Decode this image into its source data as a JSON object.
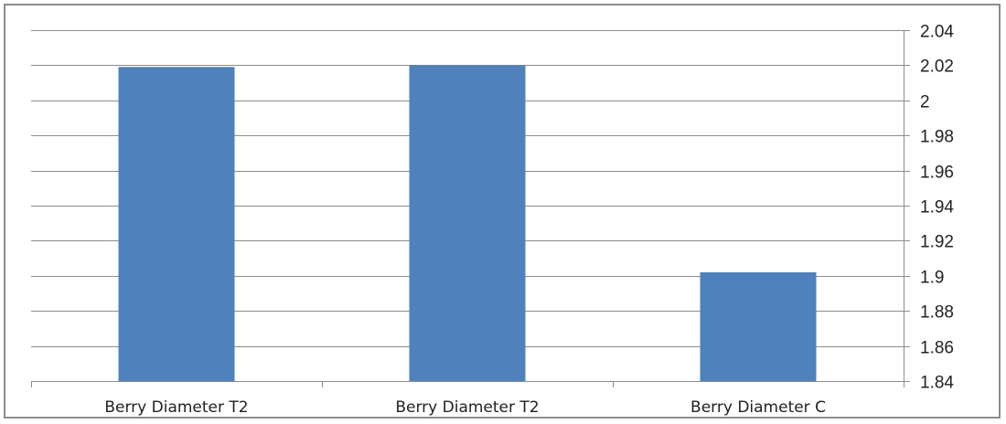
{
  "chart_data": {
    "type": "bar",
    "categories": [
      "Berry Diameter T2",
      "Berry Diameter T2",
      "Berry Diameter C"
    ],
    "values": [
      2.019,
      2.02,
      1.902
    ],
    "title": "",
    "xlabel": "",
    "ylabel": "",
    "ylim": [
      1.84,
      2.04
    ],
    "yticks": [
      2.04,
      2.02,
      2,
      1.98,
      1.96,
      1.94,
      1.92,
      1.9,
      1.88,
      1.86,
      1.84
    ],
    "ytick_labels": [
      "2.04",
      "2.02",
      "2",
      "1.98",
      "1.96",
      "1.94",
      "1.92",
      "1.9",
      "1.88",
      "1.86",
      "1.84"
    ],
    "y_axis_side": "right",
    "grid": true,
    "legend": "none",
    "bar_color": "#4f81bd",
    "grid_color": "#8c8c8c"
  }
}
